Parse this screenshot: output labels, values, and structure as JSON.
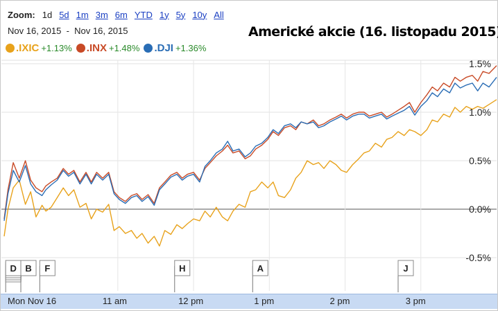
{
  "zoom": {
    "label": "Zoom:",
    "options": [
      {
        "label": "1d",
        "active": true
      },
      {
        "label": "5d",
        "active": false
      },
      {
        "label": "1m",
        "active": false
      },
      {
        "label": "3m",
        "active": false
      },
      {
        "label": "6m",
        "active": false
      },
      {
        "label": "YTD",
        "active": false
      },
      {
        "label": "1y",
        "active": false
      },
      {
        "label": "5y",
        "active": false
      },
      {
        "label": "10y",
        "active": false
      },
      {
        "label": "All",
        "active": false
      }
    ]
  },
  "date_range": {
    "start": "Nov 16, 2015",
    "separator": "-",
    "end": "Nov 16, 2015"
  },
  "chart_data": {
    "type": "line",
    "title": "Americké akcie (16. listopadu 2015)",
    "x_unit": "time of day (hours)",
    "xlim": [
      9.5,
      16.0
    ],
    "ylim": [
      -0.55,
      1.55
    ],
    "y_ticks": [
      {
        "value": 1.5,
        "label": "1.5%"
      },
      {
        "value": 1.0,
        "label": "1.0%"
      },
      {
        "value": 0.5,
        "label": "0.5%"
      },
      {
        "value": 0.0,
        "label": "0.0%"
      },
      {
        "value": -0.5,
        "label": "-0.5%"
      }
    ],
    "x_ticks": [
      {
        "value": 9.5,
        "label": "Mon Nov 16"
      },
      {
        "value": 11.0,
        "label": "11 am"
      },
      {
        "value": 12.0,
        "label": "12 pm"
      },
      {
        "value": 13.0,
        "label": "1 pm"
      },
      {
        "value": 14.0,
        "label": "2 pm"
      },
      {
        "value": 15.0,
        "label": "3 pm"
      }
    ],
    "grid": true,
    "legend_placement": "top-left",
    "series": [
      {
        "name": ".IXIC",
        "change": "+1.13%",
        "color": "#e8a21b",
        "x": [
          9.5,
          9.55,
          9.62,
          9.7,
          9.78,
          9.85,
          9.92,
          10.0,
          10.05,
          10.12,
          10.2,
          10.28,
          10.35,
          10.42,
          10.5,
          10.58,
          10.65,
          10.72,
          10.8,
          10.88,
          10.95,
          11.02,
          11.1,
          11.18,
          11.25,
          11.32,
          11.4,
          11.48,
          11.55,
          11.62,
          11.7,
          11.78,
          11.85,
          11.92,
          12.0,
          12.08,
          12.15,
          12.22,
          12.3,
          12.38,
          12.45,
          12.52,
          12.6,
          12.68,
          12.75,
          12.82,
          12.9,
          12.98,
          13.05,
          13.12,
          13.2,
          13.28,
          13.35,
          13.42,
          13.5,
          13.58,
          13.65,
          13.72,
          13.8,
          13.88,
          13.95,
          14.02,
          14.1,
          14.18,
          14.25,
          14.32,
          14.4,
          14.48,
          14.55,
          14.62,
          14.7,
          14.78,
          14.85,
          14.92,
          15.0,
          15.08,
          15.15,
          15.22,
          15.3,
          15.38,
          15.45,
          15.52,
          15.6,
          15.68,
          15.75,
          15.82,
          15.9,
          16.0
        ],
        "values": [
          -0.28,
          0.0,
          0.22,
          0.3,
          0.05,
          0.18,
          -0.08,
          0.04,
          -0.02,
          0.02,
          0.12,
          0.22,
          0.14,
          0.2,
          0.02,
          0.06,
          -0.1,
          0.0,
          -0.03,
          0.05,
          -0.22,
          -0.18,
          -0.25,
          -0.22,
          -0.3,
          -0.25,
          -0.35,
          -0.28,
          -0.38,
          -0.22,
          -0.26,
          -0.16,
          -0.2,
          -0.15,
          -0.1,
          -0.12,
          -0.02,
          -0.08,
          0.02,
          -0.08,
          -0.12,
          -0.02,
          0.05,
          0.02,
          0.18,
          0.2,
          0.28,
          0.22,
          0.28,
          0.14,
          0.12,
          0.2,
          0.32,
          0.38,
          0.5,
          0.46,
          0.48,
          0.42,
          0.5,
          0.46,
          0.4,
          0.38,
          0.46,
          0.52,
          0.58,
          0.6,
          0.68,
          0.64,
          0.72,
          0.74,
          0.8,
          0.76,
          0.82,
          0.8,
          0.76,
          0.82,
          0.92,
          0.9,
          0.98,
          0.95,
          1.05,
          1.0,
          1.06,
          1.03,
          1.06,
          1.04,
          1.08,
          1.13
        ]
      },
      {
        "name": ".INX",
        "change": "+1.48%",
        "color": "#c84a26",
        "x": [
          9.5,
          9.55,
          9.62,
          9.7,
          9.78,
          9.85,
          9.92,
          10.0,
          10.05,
          10.12,
          10.2,
          10.28,
          10.35,
          10.42,
          10.5,
          10.58,
          10.65,
          10.72,
          10.8,
          10.88,
          10.95,
          11.02,
          11.1,
          11.18,
          11.25,
          11.32,
          11.4,
          11.48,
          11.55,
          11.62,
          11.7,
          11.78,
          11.85,
          11.92,
          12.0,
          12.08,
          12.15,
          12.22,
          12.3,
          12.38,
          12.45,
          12.52,
          12.6,
          12.68,
          12.75,
          12.82,
          12.9,
          12.98,
          13.05,
          13.12,
          13.2,
          13.28,
          13.35,
          13.42,
          13.5,
          13.58,
          13.65,
          13.72,
          13.8,
          13.88,
          13.95,
          14.02,
          14.1,
          14.18,
          14.25,
          14.32,
          14.4,
          14.48,
          14.55,
          14.62,
          14.7,
          14.78,
          14.85,
          14.92,
          15.0,
          15.08,
          15.15,
          15.22,
          15.3,
          15.38,
          15.45,
          15.52,
          15.6,
          15.68,
          15.75,
          15.82,
          15.9,
          16.0
        ],
        "values": [
          -0.1,
          0.2,
          0.48,
          0.32,
          0.5,
          0.3,
          0.22,
          0.18,
          0.24,
          0.28,
          0.32,
          0.42,
          0.36,
          0.4,
          0.28,
          0.38,
          0.28,
          0.38,
          0.32,
          0.38,
          0.18,
          0.12,
          0.08,
          0.14,
          0.16,
          0.1,
          0.15,
          0.06,
          0.22,
          0.28,
          0.35,
          0.38,
          0.32,
          0.36,
          0.38,
          0.3,
          0.42,
          0.48,
          0.55,
          0.6,
          0.66,
          0.58,
          0.6,
          0.52,
          0.55,
          0.62,
          0.66,
          0.72,
          0.8,
          0.76,
          0.84,
          0.86,
          0.82,
          0.9,
          0.88,
          0.92,
          0.86,
          0.88,
          0.92,
          0.95,
          0.98,
          0.94,
          0.98,
          1.0,
          1.0,
          0.96,
          0.98,
          1.0,
          0.95,
          0.98,
          1.02,
          1.06,
          1.1,
          1.0,
          1.1,
          1.18,
          1.26,
          1.22,
          1.3,
          1.26,
          1.36,
          1.32,
          1.36,
          1.38,
          1.32,
          1.42,
          1.4,
          1.48
        ]
      },
      {
        "name": ".DJI",
        "change": "+1.36%",
        "color": "#2a6db5",
        "x": [
          9.5,
          9.55,
          9.62,
          9.7,
          9.78,
          9.85,
          9.92,
          10.0,
          10.05,
          10.12,
          10.2,
          10.28,
          10.35,
          10.42,
          10.5,
          10.58,
          10.65,
          10.72,
          10.8,
          10.88,
          10.95,
          11.02,
          11.1,
          11.18,
          11.25,
          11.32,
          11.4,
          11.48,
          11.55,
          11.62,
          11.7,
          11.78,
          11.85,
          11.92,
          12.0,
          12.08,
          12.15,
          12.22,
          12.3,
          12.38,
          12.45,
          12.52,
          12.6,
          12.68,
          12.75,
          12.82,
          12.9,
          12.98,
          13.05,
          13.12,
          13.2,
          13.28,
          13.35,
          13.42,
          13.5,
          13.58,
          13.65,
          13.72,
          13.8,
          13.88,
          13.95,
          14.02,
          14.1,
          14.18,
          14.25,
          14.32,
          14.4,
          14.48,
          14.55,
          14.62,
          14.7,
          14.78,
          14.85,
          14.92,
          15.0,
          15.08,
          15.15,
          15.22,
          15.3,
          15.38,
          15.45,
          15.52,
          15.6,
          15.68,
          15.75,
          15.82,
          15.9,
          16.0
        ],
        "values": [
          -0.12,
          0.16,
          0.4,
          0.28,
          0.45,
          0.26,
          0.18,
          0.14,
          0.2,
          0.25,
          0.3,
          0.4,
          0.34,
          0.38,
          0.26,
          0.36,
          0.26,
          0.36,
          0.3,
          0.36,
          0.16,
          0.1,
          0.06,
          0.12,
          0.14,
          0.08,
          0.13,
          0.04,
          0.2,
          0.26,
          0.33,
          0.36,
          0.3,
          0.34,
          0.36,
          0.28,
          0.44,
          0.5,
          0.58,
          0.62,
          0.7,
          0.6,
          0.62,
          0.54,
          0.58,
          0.65,
          0.68,
          0.74,
          0.82,
          0.78,
          0.86,
          0.88,
          0.84,
          0.9,
          0.88,
          0.9,
          0.84,
          0.86,
          0.9,
          0.93,
          0.96,
          0.92,
          0.96,
          0.98,
          0.98,
          0.94,
          0.96,
          0.98,
          0.93,
          0.96,
          0.99,
          1.02,
          1.06,
          0.97,
          1.06,
          1.12,
          1.2,
          1.16,
          1.24,
          1.2,
          1.3,
          1.25,
          1.28,
          1.3,
          1.22,
          1.3,
          1.26,
          1.36
        ]
      }
    ],
    "event_flags": [
      {
        "label": "D",
        "x": 9.52,
        "stacked": true
      },
      {
        "label": "B",
        "x": 9.72,
        "stacked": false
      },
      {
        "label": "F",
        "x": 9.97,
        "stacked": false
      },
      {
        "label": "H",
        "x": 11.75,
        "stacked": false
      },
      {
        "label": "A",
        "x": 12.78,
        "stacked": false
      },
      {
        "label": "J",
        "x": 14.7,
        "stacked": false
      }
    ]
  }
}
